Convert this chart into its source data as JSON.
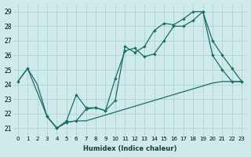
{
  "xlabel": "Humidex (Indice chaleur)",
  "background_color": "#ceeaea",
  "grid_color": "#aacccc",
  "line_color": "#1a6e64",
  "xlim": [
    -0.5,
    23.5
  ],
  "ylim": [
    20.5,
    29.5
  ],
  "xticks": [
    0,
    1,
    2,
    3,
    4,
    5,
    6,
    7,
    8,
    9,
    10,
    11,
    12,
    13,
    14,
    15,
    16,
    17,
    18,
    19,
    20,
    21,
    22,
    23
  ],
  "yticks": [
    21,
    22,
    23,
    24,
    25,
    26,
    27,
    28,
    29
  ],
  "series": [
    {
      "x": [
        0,
        1,
        2,
        3,
        4,
        5,
        6,
        7,
        8,
        9,
        10,
        11,
        12,
        13,
        14,
        15,
        16,
        17,
        18,
        19,
        20,
        21,
        22,
        23
      ],
      "y": [
        24.2,
        25.1,
        24.0,
        21.8,
        21.0,
        21.4,
        21.5,
        21.5,
        21.7,
        21.9,
        22.1,
        22.3,
        22.5,
        22.7,
        22.9,
        23.1,
        23.3,
        23.5,
        23.7,
        23.9,
        24.1,
        24.2,
        24.2,
        24.2
      ],
      "marker": false,
      "lw": 0.9
    },
    {
      "x": [
        0,
        1,
        3,
        4,
        5,
        6,
        7,
        8,
        9,
        10,
        11,
        12,
        13,
        14,
        15,
        16,
        17,
        18,
        19,
        20,
        21,
        22,
        23
      ],
      "y": [
        24.2,
        25.1,
        21.8,
        21.0,
        21.4,
        21.5,
        22.3,
        22.4,
        22.2,
        24.4,
        26.3,
        26.5,
        25.9,
        26.1,
        27.0,
        28.0,
        28.0,
        28.4,
        29.0,
        27.0,
        26.0,
        25.1,
        24.2
      ],
      "marker": true,
      "lw": 0.9
    },
    {
      "x": [
        3,
        4,
        5,
        6,
        7,
        8,
        9,
        10,
        11,
        12,
        13,
        14,
        15,
        16,
        17,
        18,
        19,
        20,
        21,
        22,
        23
      ],
      "y": [
        21.8,
        21.0,
        21.5,
        23.3,
        22.4,
        22.4,
        22.2,
        22.9,
        26.6,
        26.2,
        26.6,
        27.7,
        28.2,
        28.1,
        28.5,
        29.0,
        29.0,
        26.0,
        25.0,
        24.2,
        24.2
      ],
      "marker": true,
      "lw": 0.9
    }
  ]
}
